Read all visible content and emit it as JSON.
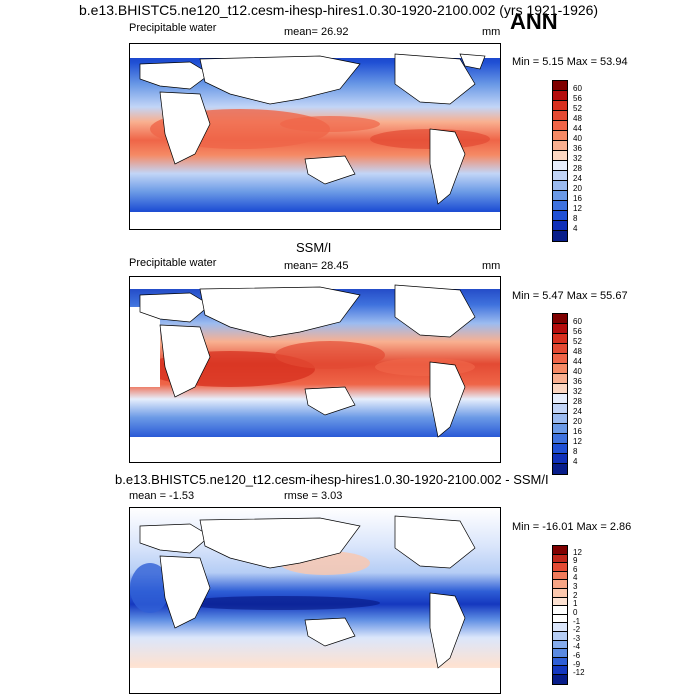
{
  "header": {
    "title": "b.e13.BHISTC5.ne120_t12.cesm-ihesp-hires1.0.30-1920-2100.002 (yrs 1921-1926)",
    "season": "ANN"
  },
  "panels": [
    {
      "variable": "Precipitable water",
      "stat": "mean=  26.92",
      "units": "mm",
      "range": "Min =   5.15 Max =  53.94",
      "cb_labels": [
        "60",
        "56",
        "52",
        "48",
        "44",
        "40",
        "36",
        "32",
        "28",
        "24",
        "20",
        "16",
        "12",
        "8",
        "4"
      ],
      "cb_colors": [
        "#7f0000",
        "#b40d0d",
        "#d7301f",
        "#e34a33",
        "#ef6548",
        "#f58a65",
        "#f9b090",
        "#fbd7c2",
        "#e6eefc",
        "#c2d5f7",
        "#9bbbf0",
        "#6b9ae6",
        "#3f72dd",
        "#2050d4",
        "#1030b8",
        "#081d8a"
      ],
      "title_above": ""
    },
    {
      "variable": "Precipitable water",
      "stat": "mean=  28.45",
      "units": "mm",
      "range": "Min =   5.47 Max =  55.67",
      "cb_labels": [
        "60",
        "56",
        "52",
        "48",
        "44",
        "40",
        "36",
        "32",
        "28",
        "24",
        "20",
        "16",
        "12",
        "8",
        "4"
      ],
      "cb_colors": [
        "#7f0000",
        "#b40d0d",
        "#d7301f",
        "#e34a33",
        "#ef6548",
        "#f58a65",
        "#f9b090",
        "#fbd7c2",
        "#e6eefc",
        "#c2d5f7",
        "#9bbbf0",
        "#6b9ae6",
        "#3f72dd",
        "#2050d4",
        "#1030b8",
        "#081d8a"
      ],
      "title_above": "SSM/I"
    },
    {
      "variable": "mean =  -1.53",
      "stat": "rmse =   3.03",
      "units": "",
      "range": "Min = -16.01 Max =   2.86",
      "cb_labels": [
        "12",
        "9",
        "6",
        "4",
        "3",
        "2",
        "1",
        "0",
        "-1",
        "-2",
        "-3",
        "-4",
        "-6",
        "-9",
        "-12"
      ],
      "cb_colors": [
        "#7f0000",
        "#c0261a",
        "#e34a33",
        "#f07a5a",
        "#f7a585",
        "#fbc7ad",
        "#fde2d2",
        "#ffffff",
        "#ffffff",
        "#dbe6fb",
        "#b5cdf5",
        "#86acec",
        "#5a8ae2",
        "#2f5fd6",
        "#1538bf",
        "#081d8a"
      ],
      "title_above": "b.e13.BHISTC5.ne120_t12.cesm-ihesp-hires1.0.30-1920-2100.002 - SSM/I"
    }
  ]
}
